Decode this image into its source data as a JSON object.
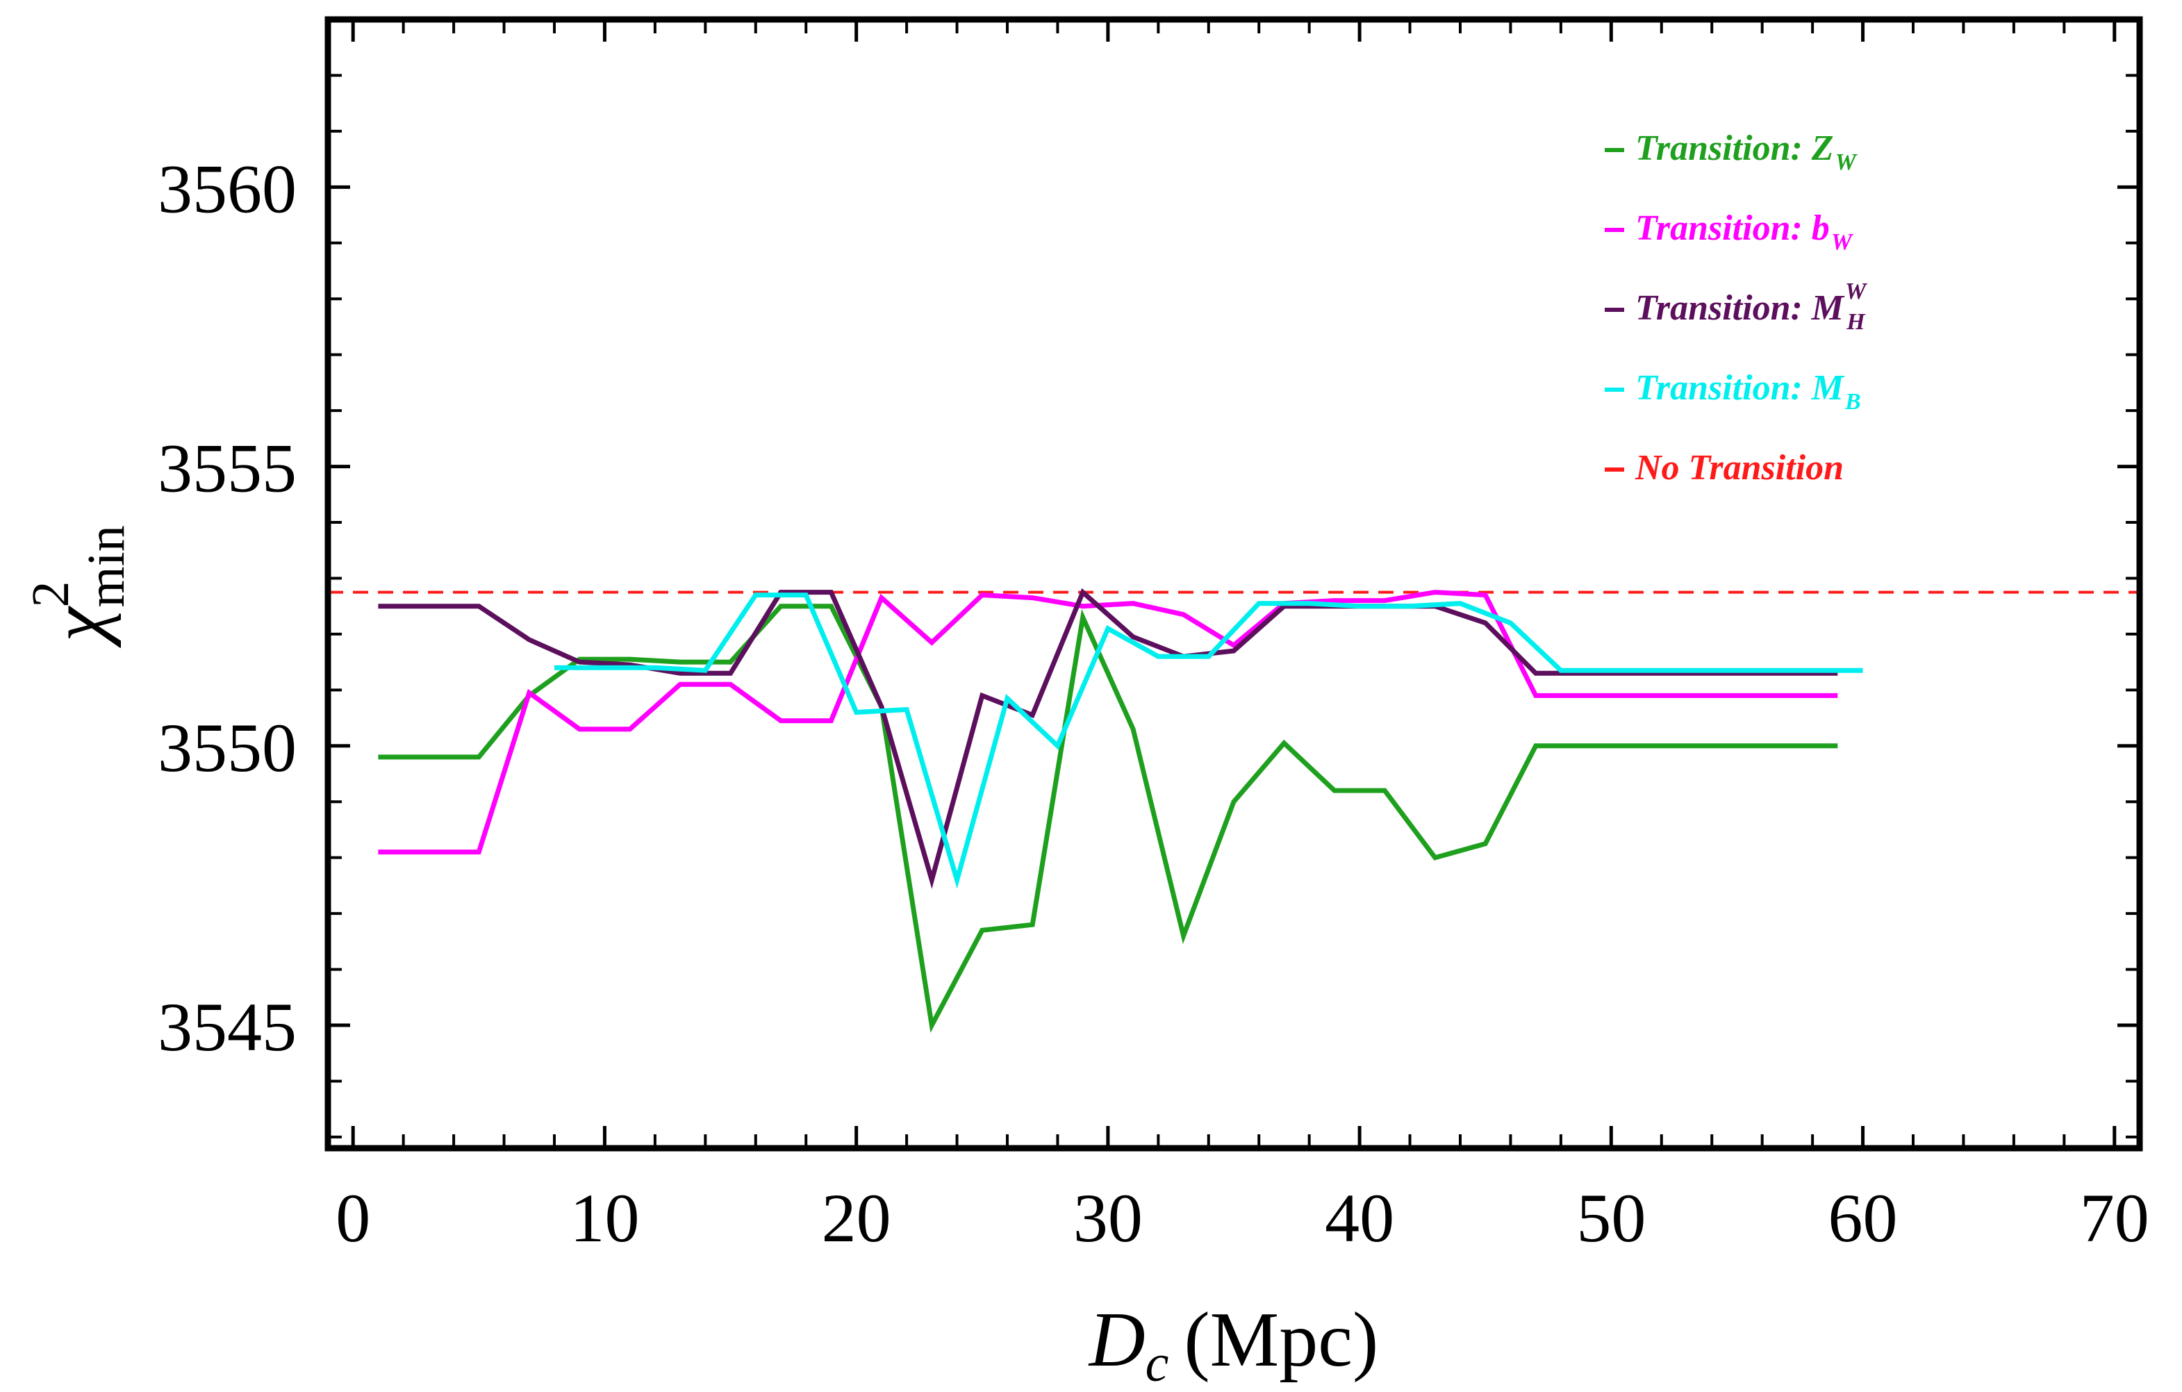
{
  "chart_data": {
    "type": "line",
    "title": "",
    "xlabel": {
      "symbol": "D",
      "subscript": "c",
      "unit": "(Mpc)"
    },
    "ylabel": {
      "symbol": "χ",
      "superscript": "2",
      "subscript": "min"
    },
    "xlim": [
      -1,
      71
    ],
    "ylim": [
      3542.8,
      3563
    ],
    "xticks": [
      0,
      10,
      20,
      30,
      40,
      50,
      60,
      70
    ],
    "yticks": [
      3545,
      3550,
      3555,
      3560
    ],
    "grid": false,
    "legend_position": "top-right",
    "series": [
      {
        "name": "Transition: Z_W",
        "label": "Transition: Z",
        "sub": "W",
        "sup": "",
        "color": "#1ea01e",
        "dashed": false,
        "x": [
          1,
          5,
          7,
          9,
          11,
          13,
          15,
          17,
          19,
          21,
          23,
          25,
          27,
          29,
          31,
          33,
          35,
          37,
          39,
          41,
          43,
          45,
          47,
          49,
          51,
          53,
          55,
          57,
          59
        ],
        "y": [
          3549.8,
          3549.8,
          3550.9,
          3551.55,
          3551.55,
          3551.5,
          3551.5,
          3552.5,
          3552.5,
          3550.7,
          3545.0,
          3546.7,
          3546.8,
          3552.3,
          3550.3,
          3546.6,
          3549.0,
          3550.05,
          3549.2,
          3549.2,
          3548.0,
          3548.25,
          3550.0,
          3550.0,
          3550.0,
          3550.0,
          3550.0,
          3550.0,
          3550.0
        ]
      },
      {
        "name": "Transition: b_W",
        "label": "Transition: b",
        "sub": "W",
        "sup": "",
        "color": "#ff00ff",
        "dashed": false,
        "x": [
          1,
          5,
          7,
          9,
          11,
          13,
          15,
          17,
          19,
          21,
          23,
          25,
          27,
          29,
          31,
          33,
          35,
          37,
          39,
          41,
          43,
          45,
          47,
          49,
          51,
          53,
          55,
          57,
          59
        ],
        "y": [
          3548.1,
          3548.1,
          3550.95,
          3550.3,
          3550.3,
          3551.1,
          3551.1,
          3550.45,
          3550.45,
          3552.65,
          3551.85,
          3552.7,
          3552.65,
          3552.5,
          3552.55,
          3552.35,
          3551.8,
          3552.55,
          3552.6,
          3552.6,
          3552.75,
          3552.7,
          3550.9,
          3550.9,
          3550.9,
          3550.9,
          3550.9,
          3550.9,
          3550.9
        ]
      },
      {
        "name": "Transition: M_H^W",
        "label": "Transition: M",
        "sub": "H",
        "sup": "W",
        "color": "#5c0f5c",
        "dashed": false,
        "x": [
          1,
          5,
          7,
          9,
          11,
          13,
          15,
          17,
          19,
          21,
          23,
          25,
          27,
          29,
          31,
          33,
          35,
          37,
          39,
          41,
          43,
          45,
          47,
          49,
          51,
          53,
          55,
          57,
          59
        ],
        "y": [
          3552.5,
          3552.5,
          3551.9,
          3551.5,
          3551.45,
          3551.3,
          3551.3,
          3552.75,
          3552.75,
          3550.7,
          3547.6,
          3550.9,
          3550.55,
          3552.75,
          3551.95,
          3551.6,
          3551.7,
          3552.5,
          3552.5,
          3552.5,
          3552.5,
          3552.2,
          3551.3,
          3551.3,
          3551.3,
          3551.3,
          3551.3,
          3551.3,
          3551.3
        ]
      },
      {
        "name": "Transition: M_B",
        "label": "Transition: M",
        "sub": "B",
        "sup": "",
        "color": "#00eeee",
        "dashed": false,
        "x": [
          8,
          10,
          12,
          14,
          16,
          18,
          20,
          22,
          24,
          26,
          28,
          30,
          32,
          34,
          36,
          38,
          40,
          42,
          44,
          46,
          48,
          50,
          52,
          54,
          56,
          58,
          60
        ],
        "y": [
          3551.4,
          3551.4,
          3551.4,
          3551.35,
          3552.7,
          3552.7,
          3550.6,
          3550.65,
          3547.6,
          3550.85,
          3550.0,
          3552.1,
          3551.6,
          3551.6,
          3552.55,
          3552.55,
          3552.5,
          3552.5,
          3552.55,
          3552.2,
          3551.35,
          3551.35,
          3551.35,
          3551.35,
          3551.35,
          3551.35,
          3551.35
        ]
      }
    ],
    "reference_line": {
      "name": "No Transition",
      "label": "No Transition",
      "color": "#ff1a1a",
      "dashed": true,
      "y": 3552.75
    }
  }
}
